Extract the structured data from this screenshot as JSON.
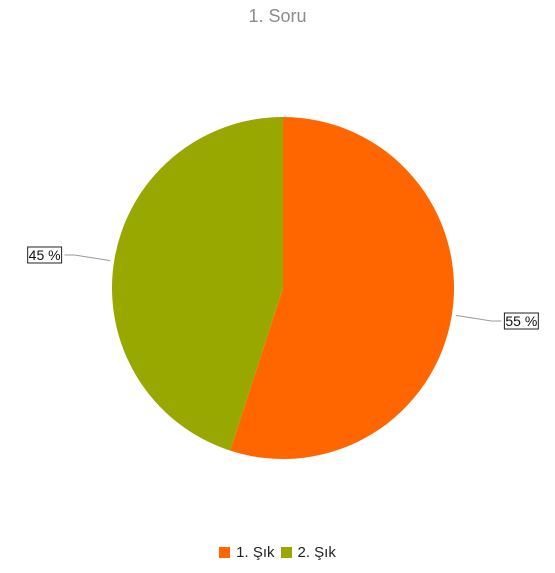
{
  "chart_data": {
    "type": "pie",
    "title": "1. Soru",
    "categories": [
      "1. Şık",
      "2. Şık"
    ],
    "values": [
      55,
      45
    ],
    "value_labels": [
      "55 %",
      "45 %"
    ],
    "colors": [
      "#ff6600",
      "#99a800"
    ],
    "legend_position": "bottom",
    "start": "top",
    "direction": "clockwise"
  }
}
